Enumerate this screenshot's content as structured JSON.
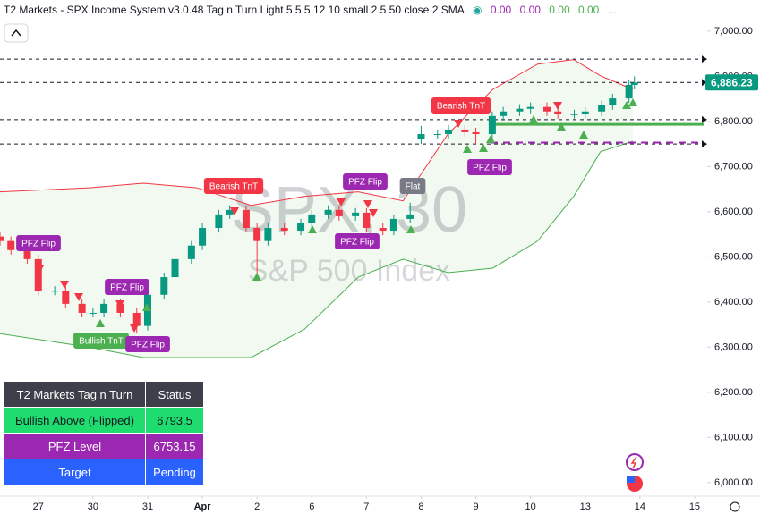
{
  "chart_data": {
    "type": "candlestick",
    "title": "T2 Markets - SPX Income System v3.0.48 Tag n Turn Light 5 5 5 12 10 small 2.5 50 close 2 SMA",
    "indicator_values": [
      {
        "value": 0,
        "label": "0.00"
      },
      {
        "value": 0,
        "label": "0.00"
      },
      {
        "value": 0,
        "label": "0.00"
      },
      {
        "value": 0,
        "label": "0.00"
      }
    ],
    "more": "...",
    "watermark": "SPX, 30",
    "watermark_subtitle": "S&P 500 Index",
    "up_color": "#089981",
    "down_color": "#f23645",
    "x": [
      -0.7,
      -0.5,
      -0.2,
      0,
      0.3,
      0.5,
      0.8,
      1,
      1.2,
      1.5,
      1.8,
      2,
      2.3,
      2.5,
      2.8,
      3,
      3.3,
      3.5,
      3.8,
      4,
      4.2,
      4.5,
      4.8,
      5,
      5.3,
      5.5,
      5.8,
      6,
      6.3,
      6.5,
      6.8,
      7,
      7.3,
      7.5,
      7.8,
      8,
      8.3,
      8.5,
      8.8,
      9,
      9.3,
      9.5,
      9.8,
      10,
      10.3,
      10.5,
      10.8,
      10.9
    ],
    "open": [
      6545,
      6535,
      6515,
      6495,
      6425,
      6425,
      6396,
      6376,
      6376,
      6396,
      6376,
      6347,
      6416,
      6455,
      6495,
      6525,
      6564,
      6594,
      6604,
      6564,
      6535,
      6564,
      6558,
      6574,
      6594,
      6604,
      6590,
      6598,
      6564,
      6558,
      6584,
      6760,
      6772,
      6772,
      6782,
      6776,
      6772,
      6812,
      6822,
      6828,
      6832,
      6822,
      6816,
      6816,
      6822,
      6836,
      6851,
      6881
    ],
    "high": [
      6555,
      6545,
      6525,
      6505,
      6435,
      6435,
      6406,
      6386,
      6406,
      6406,
      6386,
      6426,
      6465,
      6505,
      6535,
      6574,
      6604,
      6614,
      6614,
      6574,
      6574,
      6574,
      6584,
      6604,
      6614,
      6614,
      6608,
      6608,
      6574,
      6594,
      6620,
      6790,
      6782,
      6792,
      6792,
      6786,
      6822,
      6832,
      6838,
      6842,
      6842,
      6832,
      6826,
      6832,
      6846,
      6861,
      6891,
      6900
    ],
    "low": [
      6525,
      6505,
      6485,
      6415,
      6415,
      6386,
      6366,
      6366,
      6366,
      6366,
      6330,
      6337,
      6406,
      6445,
      6485,
      6515,
      6554,
      6584,
      6554,
      6460,
      6525,
      6548,
      6548,
      6564,
      6584,
      6580,
      6580,
      6554,
      6548,
      6548,
      6574,
      6750,
      6762,
      6762,
      6766,
      6750,
      6762,
      6802,
      6812,
      6818,
      6812,
      6806,
      6806,
      6806,
      6812,
      6826,
      6841,
      6871
    ],
    "close": [
      6535,
      6515,
      6495,
      6425,
      6425,
      6396,
      6376,
      6376,
      6396,
      6376,
      6347,
      6416,
      6455,
      6495,
      6525,
      6564,
      6594,
      6604,
      6564,
      6535,
      6564,
      6558,
      6574,
      6594,
      6604,
      6590,
      6598,
      6564,
      6558,
      6584,
      6594,
      6772,
      6772,
      6782,
      6776,
      6772,
      6812,
      6822,
      6828,
      6832,
      6822,
      6816,
      6816,
      6822,
      6836,
      6851,
      6881,
      6886
    ],
    "bands": {
      "x": [
        -0.7,
        0.93,
        1.92,
        2.9,
        3.89,
        4.87,
        5.85,
        6.67,
        7.49,
        8.31,
        9.13,
        9.79,
        10.28,
        10.87
      ],
      "upper": [
        6644,
        6653,
        6663,
        6653,
        6614,
        6634,
        6644,
        6624,
        6772,
        6871,
        6927,
        6937,
        6901,
        6871
      ],
      "upper_color": "#f23645",
      "lower": [
        6330,
        6300,
        6277,
        6277,
        6277,
        6340,
        6455,
        6495,
        6465,
        6475,
        6535,
        6634,
        6733,
        6756
      ],
      "lower_color": "#4caf50"
    },
    "levels": {
      "dashed": [
        6938,
        6886.23,
        6804,
        6750
      ],
      "bullish_above": 6793.5,
      "bullish_color": "#4caf50",
      "pfz": 6753.15,
      "pfz_color": "#9c27b0"
    },
    "last_price": {
      "value": 6886.23,
      "label": "6,886.23"
    },
    "annotations": [
      "PFZ Flip",
      "PFZ Flip",
      "Bullish TnT",
      "PFZ Flip",
      "Bearish TnT",
      "PFZ Flip",
      "PFZ Flip",
      "Flat",
      "Bearish TnT",
      "PFZ Flip"
    ],
    "xlim": [
      -0.7,
      12.23
    ],
    "xticks": [
      {
        "value": 0,
        "label": "27"
      },
      {
        "value": 1,
        "label": "30"
      },
      {
        "value": 2,
        "label": "31"
      },
      {
        "value": 3,
        "label": "Apr"
      },
      {
        "value": 4,
        "label": "2"
      },
      {
        "value": 5,
        "label": "6"
      },
      {
        "value": 6,
        "label": "7"
      },
      {
        "value": 7,
        "label": "8"
      },
      {
        "value": 8,
        "label": "9"
      },
      {
        "value": 9,
        "label": "10"
      },
      {
        "value": 10,
        "label": "13"
      },
      {
        "value": 11,
        "label": "14"
      },
      {
        "value": 12,
        "label": "15"
      }
    ],
    "ylim": [
      5970,
      7069
    ],
    "yticks": [
      {
        "value": 6000,
        "label": "6,000.00"
      },
      {
        "value": 6100,
        "label": "6,100.00"
      },
      {
        "value": 6200,
        "label": "6,200.00"
      },
      {
        "value": 6300,
        "label": "6,300.00"
      },
      {
        "value": 6400,
        "label": "6,400.00"
      },
      {
        "value": 6500,
        "label": "6,500.00"
      },
      {
        "value": 6600,
        "label": "6,600.00"
      },
      {
        "value": 6700,
        "label": "6,700.00"
      },
      {
        "value": 6800,
        "label": "6,800.00"
      },
      {
        "value": 6900,
        "label": "6,900.00"
      },
      {
        "value": 7000,
        "label": "7,000.00"
      }
    ]
  },
  "table": {
    "header": [
      "T2 Markets Tag n Turn",
      "Status"
    ],
    "rows": [
      [
        "Bullish Above (Flipped)",
        "6793.5"
      ],
      [
        "PFZ Level",
        "6753.15"
      ],
      [
        "Target",
        "Pending"
      ]
    ]
  }
}
